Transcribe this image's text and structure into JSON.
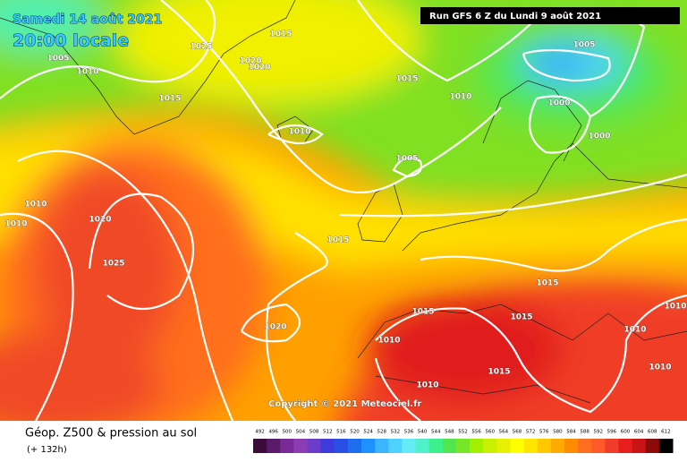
{
  "header": {
    "date": "Samedi 14 août 2021",
    "time": "20:00 locale",
    "run": "Run GFS 6 Z du Lundi 9 août 2021"
  },
  "isobar_labels": [
    "1005",
    "1010",
    "1025",
    "1015",
    "1020",
    "1020",
    "1015",
    "1015",
    "1010",
    "1005",
    "1000",
    "1000",
    "1010",
    "1005",
    "1010",
    "1010",
    "1020",
    "1025",
    "1015",
    "1020",
    "1015",
    "1015",
    "1015",
    "1010",
    "1015",
    "1010",
    "1010",
    "1010",
    "1010"
  ],
  "copyright": "Copyright © 2021 Meteociel.fr",
  "footer": {
    "title": "Géop. Z500 & pression au sol",
    "lead": "(+ 132h)"
  },
  "legend": {
    "ticks": [
      492,
      496,
      500,
      504,
      508,
      512,
      516,
      520,
      524,
      528,
      532,
      536,
      540,
      544,
      548,
      552,
      556,
      560,
      564,
      568,
      572,
      576,
      580,
      584,
      588,
      592,
      596,
      600,
      604,
      608,
      612
    ],
    "colors": [
      "#3b0b3c",
      "#5a1a6a",
      "#7a2a96",
      "#8c3cb4",
      "#6a3cc8",
      "#3c3cdc",
      "#2850e6",
      "#1e6ef0",
      "#1e90ff",
      "#3cb4ff",
      "#50d2ff",
      "#64ebf5",
      "#50f0c8",
      "#3cf08c",
      "#50e650",
      "#78e628",
      "#a0f000",
      "#c8f000",
      "#e6f000",
      "#ffff00",
      "#ffe600",
      "#ffc800",
      "#ffaa00",
      "#ff8c00",
      "#ff6e1e",
      "#ff5a28",
      "#f03c28",
      "#e61e1e",
      "#c81414",
      "#8c0a0a",
      "#000000"
    ]
  }
}
